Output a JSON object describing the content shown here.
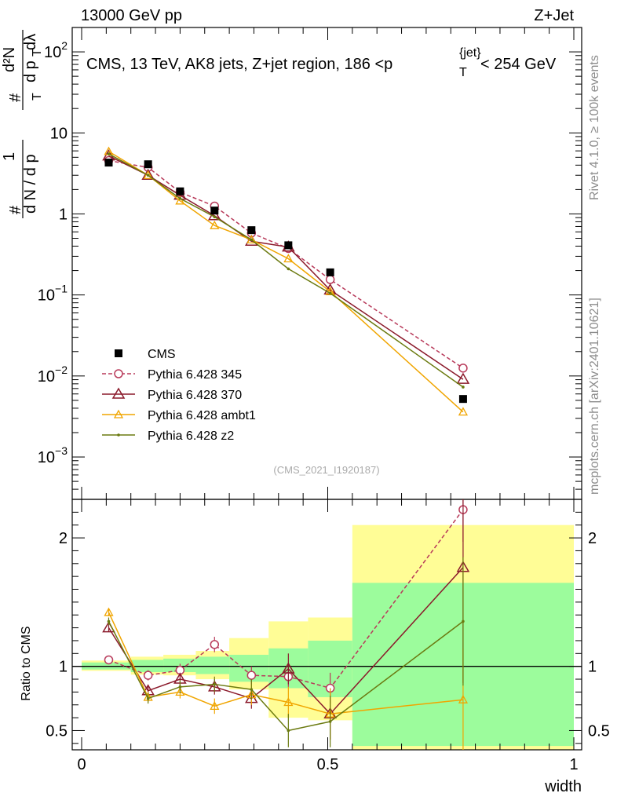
{
  "header": {
    "energy": "13000 GeV pp",
    "process": "Z+Jet"
  },
  "side": {
    "rivet": "Rivet 4.1.0, ≥ 100k events",
    "mcplots": "mcplots.cern.ch [arXiv:2401.10621]"
  },
  "chart_data": {
    "type": "line",
    "title": "CMS, 13 TeV, AK8 jets, Z+jet region, 186 <p_T^{jet}< 254 GeV",
    "title_parts": {
      "main": "CMS, 13 TeV, AK8 jets, Z+jet region, 186 <p",
      "sup": "{jet}",
      "sub": "T",
      "end": "< 254 GeV"
    },
    "ylabel_parts": {
      "hash1": "#",
      "one": "1",
      "hash2": "#",
      "dN": "d²N",
      "den_left": "d N / d p",
      "den_right": "d p",
      "T": "T",
      "lambda": "dλ"
    },
    "xlabel": "width",
    "ratio_ylabel": "Ratio to CMS",
    "analysis_id": "(CMS_2021_I1920187)",
    "xlim": [
      0,
      1
    ],
    "ylim": [
      0.0003,
      200
    ],
    "ratio_ylim": [
      0.35,
      2.3
    ],
    "main_y_ticks": [
      {
        "value": 100,
        "base": "10",
        "exp": "2"
      },
      {
        "value": 10,
        "base": "10",
        "exp": ""
      },
      {
        "value": 1,
        "base": "1",
        "exp": ""
      },
      {
        "value": 0.1,
        "base": "10",
        "exp": "−1"
      },
      {
        "value": 0.01,
        "base": "10",
        "exp": "−2"
      },
      {
        "value": 0.001,
        "base": "10",
        "exp": "−3"
      }
    ],
    "x_ticks": [
      {
        "value": 0,
        "label": "0"
      },
      {
        "value": 0.5,
        "label": "0.5"
      },
      {
        "value": 1,
        "label": "1"
      }
    ],
    "ratio_ticks": [
      {
        "value": 0.5,
        "label": "0.5"
      },
      {
        "value": 1,
        "label": "1"
      },
      {
        "value": 2,
        "label": "2"
      }
    ],
    "bins": [
      {
        "lo": 0.0,
        "hi": 0.1
      },
      {
        "lo": 0.1,
        "hi": 0.166
      },
      {
        "lo": 0.166,
        "hi": 0.232
      },
      {
        "lo": 0.232,
        "hi": 0.3
      },
      {
        "lo": 0.3,
        "hi": 0.38
      },
      {
        "lo": 0.38,
        "hi": 0.46
      },
      {
        "lo": 0.46,
        "hi": 0.55
      },
      {
        "lo": 0.55,
        "hi": 1.0
      }
    ],
    "x": [
      0.055,
      0.135,
      0.2,
      0.27,
      0.345,
      0.42,
      0.505,
      0.775
    ],
    "cms": {
      "name": "CMS",
      "values": [
        4.3,
        4.1,
        1.9,
        1.1,
        0.63,
        0.41,
        0.19,
        0.0052
      ]
    },
    "bands": {
      "stat_green": [
        [
          0.975,
          1.03
        ],
        [
          0.955,
          1.05
        ],
        [
          0.955,
          1.06
        ],
        [
          0.94,
          1.075
        ],
        [
          0.88,
          1.09
        ],
        [
          0.83,
          1.14
        ],
        [
          0.76,
          1.2
        ],
        [
          0.38,
          1.65
        ]
      ],
      "total_yellow": [
        [
          0.965,
          1.045
        ],
        [
          0.935,
          1.075
        ],
        [
          0.93,
          1.09
        ],
        [
          0.9,
          1.12
        ],
        [
          0.82,
          1.22
        ],
        [
          0.6,
          1.35
        ],
        [
          0.58,
          1.38
        ],
        [
          0.35,
          2.1
        ]
      ]
    },
    "series": [
      {
        "name": "Pythia 6.428 345",
        "color": "#b83a5a",
        "marker": "circle",
        "dashed": true,
        "values": [
          4.55,
          3.75,
          1.85,
          1.25,
          0.58,
          0.375,
          0.155,
          0.0125
        ],
        "ratio": [
          1.05,
          0.93,
          0.97,
          1.17,
          0.93,
          0.92,
          0.83,
          2.22
        ],
        "ratio_err": [
          0.02,
          0.04,
          0.05,
          0.06,
          0.07,
          0.08,
          0.12,
          0.25
        ]
      },
      {
        "name": "Pythia 6.428 370",
        "color": "#8b1a2b",
        "marker": "triangle",
        "dashed": false,
        "values": [
          5.2,
          3.0,
          1.7,
          0.95,
          0.46,
          0.39,
          0.115,
          0.0091
        ],
        "ratio": [
          1.3,
          0.81,
          0.9,
          0.84,
          0.75,
          0.98,
          0.63,
          1.77
        ],
        "ratio_err": [
          0.03,
          0.04,
          0.05,
          0.06,
          0.08,
          0.12,
          0.2,
          0.9
        ]
      },
      {
        "name": "Pythia 6.428 ambt1",
        "color": "#f0a500",
        "marker": "triangle-small",
        "dashed": false,
        "values": [
          5.9,
          3.0,
          1.45,
          0.72,
          0.48,
          0.28,
          0.11,
          0.0036
        ],
        "ratio": [
          1.42,
          0.76,
          0.8,
          0.69,
          0.78,
          0.72,
          0.63,
          0.74
        ],
        "ratio_err": [
          0.03,
          0.04,
          0.05,
          0.06,
          0.08,
          0.12,
          0.2,
          0.4
        ]
      },
      {
        "name": "Pythia 6.428 z2",
        "color": "#6b7a10",
        "marker": "dot",
        "dashed": false,
        "values": [
          5.5,
          3.0,
          1.55,
          0.92,
          0.48,
          0.21,
          0.105,
          0.0073
        ],
        "ratio": [
          1.35,
          0.75,
          0.84,
          0.86,
          0.82,
          0.5,
          0.57,
          1.35
        ],
        "ratio_err": [
          0.03,
          0.04,
          0.05,
          0.06,
          0.08,
          0.13,
          0.2,
          0.5
        ]
      }
    ],
    "legend_position": "lower-left",
    "colors": {
      "band_green": "#9cfc9c",
      "band_yellow": "#fffd96"
    }
  }
}
